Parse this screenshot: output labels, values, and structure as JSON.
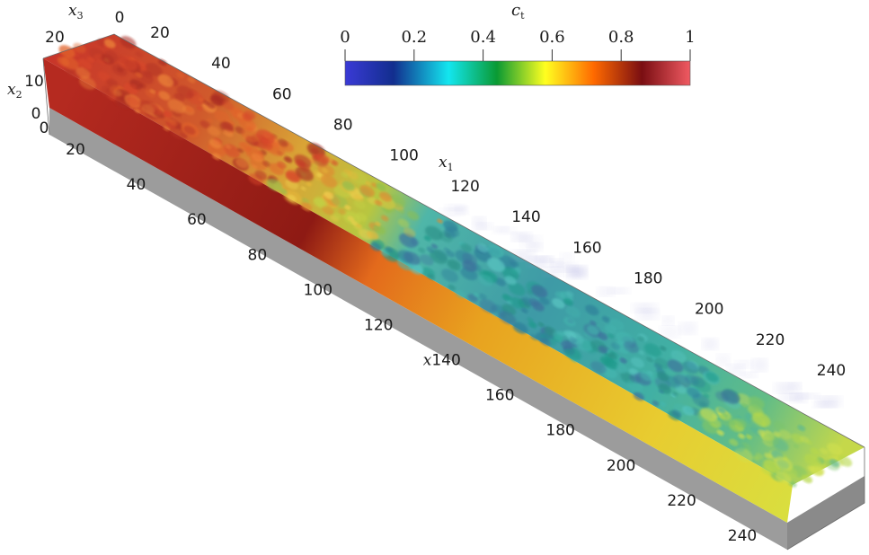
{
  "figure": {
    "colorbar": {
      "title": "c",
      "title_sub": "t",
      "ticks": [
        "0",
        "0.2",
        "0.4",
        "0.6",
        "0.8",
        "1"
      ],
      "range": [
        0,
        1
      ],
      "colormap": [
        "#3a3ad6",
        "#122e8e",
        "#13e6ef",
        "#0a9a33",
        "#ffff20",
        "#ff6a00",
        "#7a0e12",
        "#f05a62"
      ]
    },
    "axes": {
      "x1_label": "x",
      "x1_sub": "1",
      "x2_label": "x",
      "x2_sub": "2",
      "x3_label": "x",
      "x3_sub": "3",
      "x1_top_ticks": [
        "20",
        "40",
        "60",
        "80",
        "100",
        "120",
        "140",
        "160",
        "180",
        "200",
        "220",
        "240"
      ],
      "x1_bottom_ticks": [
        "20",
        "40",
        "60",
        "80",
        "100",
        "120",
        "140",
        "160",
        "180",
        "200",
        "220",
        "240"
      ],
      "x1_bottom_label_prefix": "x",
      "x3_ticks": [
        "20",
        "0"
      ],
      "x2_ticks": [
        "10",
        "0"
      ],
      "x2_base_tick": "0"
    },
    "field_colors": {
      "upstream": "#c53a2a",
      "front": "#e0c33a",
      "downstream": "#3aa6a6",
      "tail": "#b6d43e",
      "base": "#9a9a9a"
    }
  }
}
